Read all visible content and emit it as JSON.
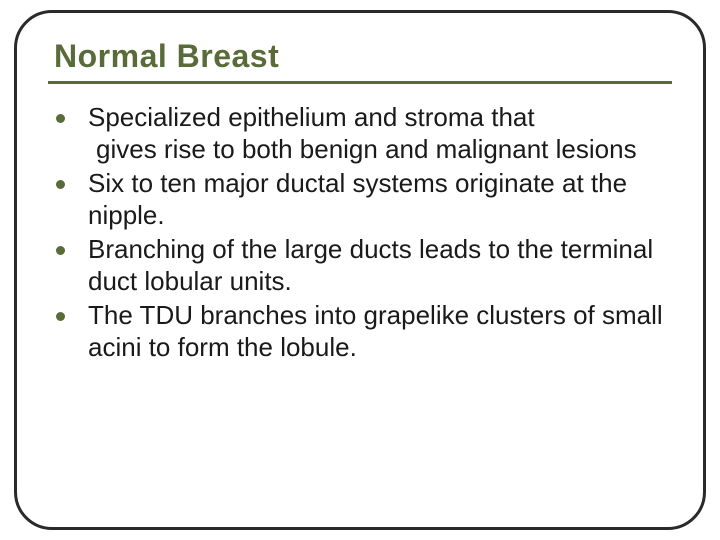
{
  "slide": {
    "title": "Normal Breast",
    "title_color": "#5a6b3a",
    "title_fontsize": 32,
    "title_fontweight": 700,
    "underline_color": "#5a6b3a",
    "underline_height": 3,
    "frame_border_color": "#2a2a2a",
    "frame_border_width": 3,
    "frame_border_radius": 38,
    "background_color": "#ffffff",
    "bullet_color": "#5a6b3a",
    "bullet_size": 9,
    "body_fontsize": 26,
    "body_color": "#1a1a1a",
    "bullets": [
      {
        "line1": "Specialized epithelium and stroma that",
        "line2": " gives rise to both benign and malignant lesions"
      },
      {
        "line1": "Six to ten major ductal systems originate at the nipple."
      },
      {
        "line1": "Branching of the large ducts leads to the terminal duct lobular units."
      },
      {
        "line1": "The TDU branches into grapelike clusters of small acini to form the lobule."
      }
    ]
  }
}
